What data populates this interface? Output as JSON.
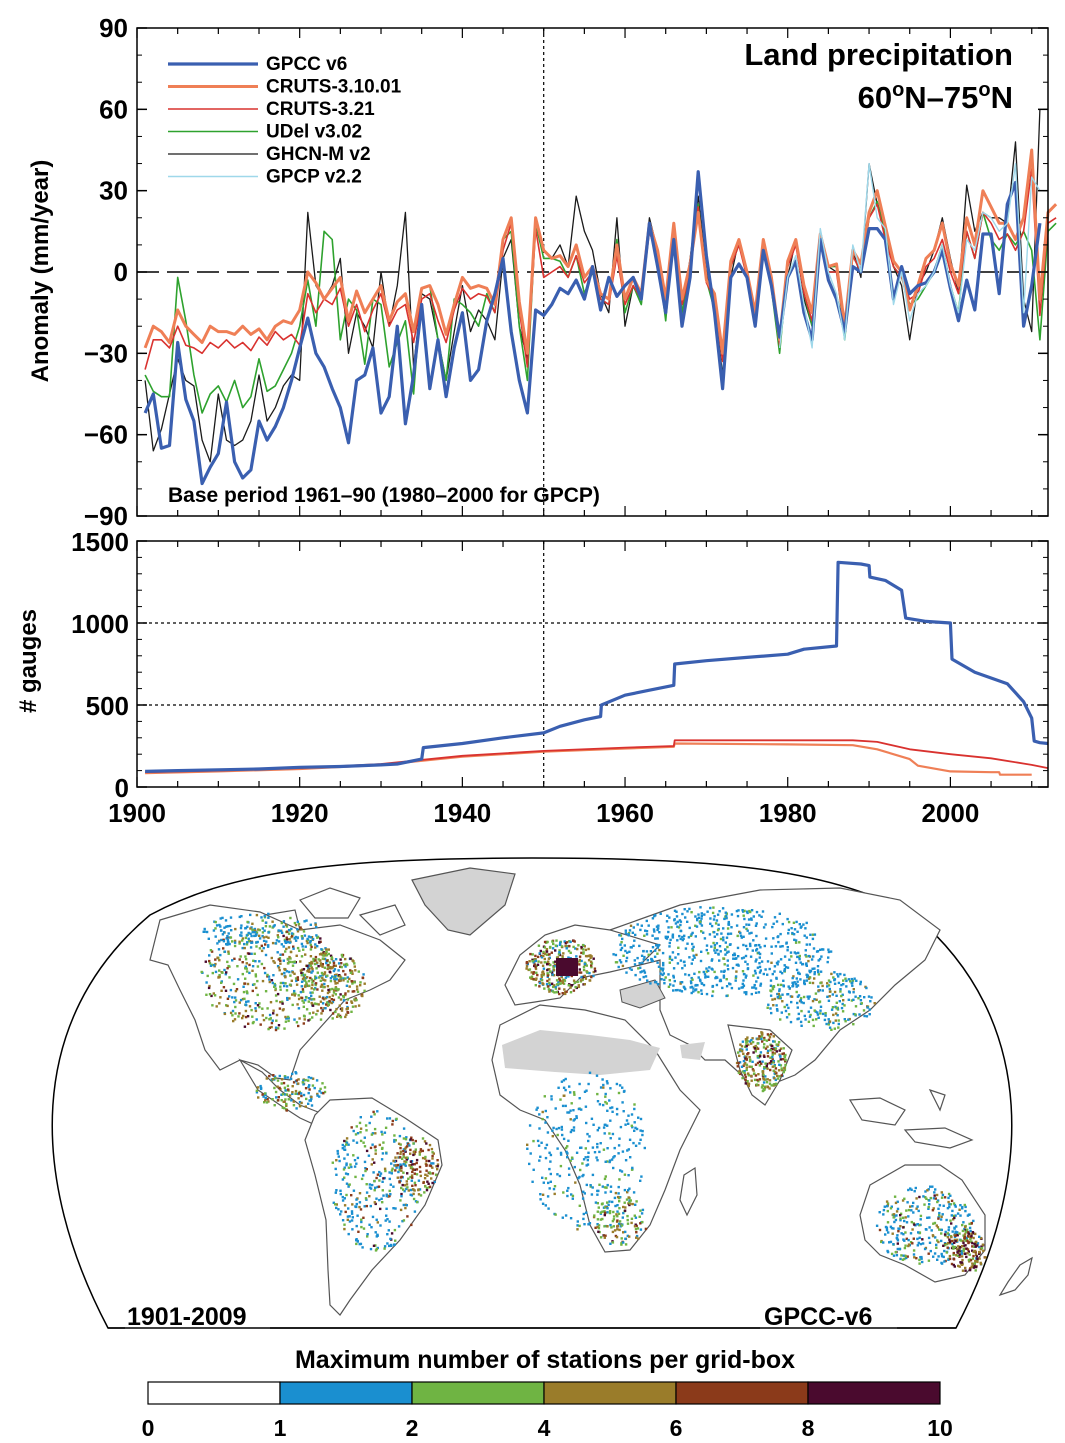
{
  "chart_data": [
    {
      "type": "line",
      "title": "Land precipitation",
      "subtitle_parts": [
        "60",
        "o",
        "N–75",
        "o",
        "N"
      ],
      "ylabel": "Anomaly (mm/year)",
      "xlabel": "",
      "xlim": [
        1900,
        2012
      ],
      "ylim": [
        -90,
        90
      ],
      "yticks": [
        "90",
        "60",
        "30",
        "0",
        "−30",
        "−60",
        "−90"
      ],
      "ytick_values": [
        90,
        60,
        30,
        0,
        -30,
        -60,
        -90
      ],
      "zero_line": "dashed",
      "vline_x": 1950,
      "legend_position": "top-left",
      "annotation": "Base period 1961–90 (1980–2000 for GPCP)",
      "start_year": 1901,
      "series": [
        {
          "name": "GPCC v6",
          "color": "#3a5fb0",
          "width": 3.2,
          "values": [
            -52,
            -45,
            -65,
            -64,
            -26,
            -47,
            -55,
            -78,
            -72,
            -67,
            -48,
            -70,
            -76,
            -73,
            -55,
            -62,
            -57,
            -50,
            -40,
            -28,
            -17,
            -30,
            -35,
            -43,
            -50,
            -63,
            -40,
            -38,
            -28,
            -52,
            -46,
            -20,
            -56,
            -38,
            -12,
            -43,
            -25,
            -46,
            -28,
            -15,
            -40,
            -36,
            -18,
            -8,
            5,
            -22,
            -40,
            -52,
            -14,
            -16,
            -12,
            -6,
            -8,
            -3,
            -10,
            2,
            -14,
            -2,
            -9,
            -5,
            -2,
            -10,
            18,
            2,
            -15,
            12,
            -20,
            -2,
            37,
            6,
            -15,
            -43,
            -2,
            3,
            -2,
            -20,
            8,
            -5,
            -24,
            -2,
            4,
            -15,
            -25,
            12,
            -3,
            -10,
            -22,
            2,
            0,
            16,
            16,
            12,
            -10,
            2,
            -8,
            -5,
            -4,
            0,
            8,
            -6,
            -18,
            -3,
            -14,
            14,
            14,
            -8,
            25,
            33,
            -20,
            -5,
            18
          ]
        },
        {
          "name": "CRUTS-3.10.01",
          "color": "#ef7f56",
          "width": 3.0,
          "values": [
            -28,
            -20,
            -22,
            -26,
            -14,
            -20,
            -23,
            -26,
            -20,
            -22,
            -22,
            -23,
            -20,
            -23,
            -21,
            -25,
            -20,
            -18,
            -19,
            -14,
            0,
            -4,
            -10,
            -6,
            -2,
            -18,
            -7,
            -15,
            -10,
            -5,
            -18,
            -11,
            -8,
            -22,
            -6,
            -5,
            -12,
            -23,
            -12,
            -2,
            -6,
            -5,
            -6,
            -12,
            12,
            20,
            -11,
            -30,
            20,
            8,
            5,
            6,
            2,
            10,
            -2,
            2,
            -8,
            -10,
            10,
            -10,
            -2,
            -8,
            18,
            8,
            -10,
            18,
            -10,
            3,
            22,
            -3,
            -8,
            -30,
            4,
            12,
            0,
            -15,
            12,
            -2,
            -25,
            4,
            12,
            -5,
            -15,
            14,
            2,
            3,
            -20,
            8,
            3,
            22,
            30,
            17,
            4,
            0,
            -14,
            -5,
            5,
            8,
            18,
            3,
            -5,
            20,
            10,
            30,
            24,
            18,
            18,
            12,
            20,
            45,
            -10,
            22,
            25
          ]
        },
        {
          "name": "CRUTS-3.21",
          "color": "#d9322f",
          "width": 1.6,
          "values": [
            -36,
            -25,
            -25,
            -28,
            -20,
            -27,
            -28,
            -30,
            -26,
            -28,
            -25,
            -28,
            -26,
            -29,
            -24,
            -27,
            -22,
            -25,
            -23,
            -27,
            -8,
            -15,
            -10,
            -12,
            -6,
            -20,
            -12,
            -22,
            -14,
            -8,
            -20,
            -14,
            -12,
            -26,
            -10,
            -8,
            -18,
            -26,
            -14,
            -6,
            -10,
            -8,
            -9,
            -15,
            8,
            18,
            -14,
            -35,
            16,
            -2,
            0,
            2,
            -2,
            6,
            -4,
            0,
            -10,
            -12,
            6,
            -12,
            -5,
            -10,
            15,
            5,
            -12,
            15,
            -12,
            0,
            24,
            -4,
            -10,
            -33,
            2,
            10,
            -2,
            -17,
            10,
            -4,
            -27,
            2,
            10,
            -8,
            -18,
            11,
            0,
            0,
            -22,
            6,
            0,
            20,
            25,
            12,
            2,
            -2,
            -10,
            -8,
            2,
            5,
            12,
            0,
            -8,
            15,
            5,
            22,
            18,
            12,
            14,
            8,
            15,
            38,
            -16,
            18,
            20
          ]
        },
        {
          "name": "UDel v3.02",
          "color": "#2ea22e",
          "width": 1.6,
          "values": [
            -38,
            -44,
            -46,
            -46,
            -2,
            -18,
            -38,
            -52,
            -45,
            -42,
            -48,
            -40,
            -50,
            -46,
            -32,
            -44,
            -42,
            -36,
            -30,
            -20,
            -3,
            -20,
            15,
            12,
            -25,
            -10,
            -14,
            -34,
            -10,
            -12,
            -35,
            -26,
            -18,
            -45,
            -6,
            -5,
            -25,
            -40,
            -10,
            -12,
            -15,
            -20,
            -8,
            -15,
            12,
            15,
            -20,
            -40,
            18,
            5,
            5,
            4,
            -2,
            6,
            -8,
            0,
            -10,
            -12,
            12,
            -15,
            -5,
            -12,
            18,
            6,
            -18,
            16,
            -15,
            0,
            25,
            -3,
            -14,
            -40,
            2,
            10,
            0,
            -18,
            10,
            -6,
            -30,
            2,
            12,
            -8,
            -20,
            14,
            2,
            2,
            -25,
            6,
            0,
            20,
            26,
            14,
            2,
            -2,
            -12,
            -10,
            -5,
            0,
            10,
            -5,
            -15,
            15,
            5,
            22,
            12,
            8,
            14,
            10,
            15,
            8,
            -25,
            15,
            18
          ]
        },
        {
          "name": "GHCN-M v2",
          "color": "#1a1a1a",
          "width": 1.3,
          "values": [
            -40,
            -66,
            -58,
            -45,
            -32,
            -40,
            -42,
            -62,
            -70,
            -45,
            -62,
            -64,
            -62,
            -55,
            -38,
            -55,
            -50,
            -42,
            -38,
            -40,
            22,
            -5,
            -10,
            -5,
            5,
            -30,
            -15,
            -20,
            -28,
            0,
            -20,
            -5,
            22,
            -35,
            -8,
            -10,
            -25,
            -40,
            -22,
            -5,
            -22,
            -14,
            -18,
            -25,
            5,
            12,
            -20,
            -32,
            18,
            8,
            5,
            10,
            2,
            28,
            15,
            8,
            -8,
            -15,
            20,
            -20,
            -5,
            -12,
            20,
            8,
            -12,
            15,
            -15,
            5,
            28,
            0,
            -12,
            -38,
            -2,
            12,
            0,
            -18,
            12,
            -5,
            -22,
            -2,
            12,
            -10,
            -20,
            15,
            2,
            0,
            -18,
            8,
            -2,
            40,
            25,
            18,
            2,
            -5,
            -25,
            -5,
            0,
            8,
            20,
            5,
            -8,
            32,
            15,
            22,
            20,
            20,
            18,
            48,
            -10,
            -22,
            60
          ]
        },
        {
          "name": "GPCP v2.2",
          "color": "#9fd8ea",
          "width": 1.4,
          "values": [
            null,
            null,
            null,
            null,
            null,
            null,
            null,
            null,
            null,
            null,
            null,
            null,
            null,
            null,
            null,
            null,
            null,
            null,
            null,
            null,
            null,
            null,
            null,
            null,
            null,
            null,
            null,
            null,
            null,
            null,
            null,
            null,
            null,
            null,
            null,
            null,
            null,
            null,
            null,
            null,
            null,
            null,
            null,
            null,
            null,
            null,
            null,
            null,
            null,
            null,
            null,
            null,
            null,
            null,
            null,
            null,
            null,
            null,
            null,
            null,
            null,
            null,
            null,
            null,
            null,
            null,
            null,
            null,
            null,
            null,
            null,
            null,
            null,
            null,
            null,
            null,
            null,
            null,
            -28,
            -2,
            6,
            -12,
            -28,
            16,
            0,
            -8,
            -25,
            10,
            0,
            40,
            20,
            16,
            -12,
            0,
            -18,
            -8,
            -5,
            0,
            10,
            -5,
            -15,
            12,
            8,
            22,
            20,
            15,
            18,
            40,
            -15,
            35,
            30
          ]
        }
      ]
    },
    {
      "type": "line",
      "title": "",
      "ylabel": "# gauges",
      "xlabel": "",
      "xlim": [
        1900,
        2012
      ],
      "ylim": [
        0,
        1500
      ],
      "yticks": [
        "1500",
        "1000",
        "500",
        "0"
      ],
      "ytick_values": [
        1500,
        1000,
        500,
        0
      ],
      "xticks": [
        "1900",
        "1920",
        "1940",
        "1960",
        "1980",
        "2000"
      ],
      "xtick_values": [
        1900,
        1920,
        1940,
        1960,
        1980,
        2000
      ],
      "hlines": [
        1000,
        500
      ],
      "vline_x": 1950,
      "series": [
        {
          "name": "GPCC v6",
          "color": "#3a5fb0",
          "width": 3.2,
          "points": [
            [
              1901,
              95
            ],
            [
              1905,
              100
            ],
            [
              1910,
              105
            ],
            [
              1915,
              110
            ],
            [
              1920,
              120
            ],
            [
              1925,
              125
            ],
            [
              1930,
              135
            ],
            [
              1932,
              140
            ],
            [
              1935,
              170
            ],
            [
              1935.2,
              240
            ],
            [
              1940,
              265
            ],
            [
              1945,
              300
            ],
            [
              1950,
              330
            ],
            [
              1952,
              370
            ],
            [
              1955,
              410
            ],
            [
              1957,
              430
            ],
            [
              1957.1,
              500
            ],
            [
              1960,
              560
            ],
            [
              1963,
              590
            ],
            [
              1966,
              620
            ],
            [
              1966.1,
              750
            ],
            [
              1970,
              770
            ],
            [
              1975,
              790
            ],
            [
              1980,
              810
            ],
            [
              1982,
              840
            ],
            [
              1986,
              860
            ],
            [
              1986.2,
              1370
            ],
            [
              1989,
              1360
            ],
            [
              1990,
              1350
            ],
            [
              1990.1,
              1280
            ],
            [
              1992,
              1260
            ],
            [
              1994,
              1200
            ],
            [
              1994.5,
              1030
            ],
            [
              1997,
              1010
            ],
            [
              2000,
              1000
            ],
            [
              2000.2,
              780
            ],
            [
              2003,
              700
            ],
            [
              2007,
              630
            ],
            [
              2009,
              520
            ],
            [
              2010,
              420
            ],
            [
              2010.3,
              280
            ],
            [
              2011,
              270
            ],
            [
              2012,
              265
            ]
          ]
        },
        {
          "name": "CRUTS-3.10.01",
          "color": "#ef7f56",
          "width": 2.2,
          "points": [
            [
              1901,
              85
            ],
            [
              1910,
              95
            ],
            [
              1920,
              110
            ],
            [
              1930,
              135
            ],
            [
              1940,
              185
            ],
            [
              1950,
              215
            ],
            [
              1960,
              235
            ],
            [
              1966,
              245
            ],
            [
              1966.1,
              265
            ],
            [
              1980,
              260
            ],
            [
              1988,
              255
            ],
            [
              1991,
              230
            ],
            [
              1995,
              170
            ],
            [
              1996,
              130
            ],
            [
              2000,
              95
            ],
            [
              2005,
              90
            ],
            [
              2006,
              90
            ],
            [
              2006.1,
              75
            ],
            [
              2010,
              75
            ]
          ]
        },
        {
          "name": "CRUTS-3.21",
          "color": "#d9322f",
          "width": 1.8,
          "points": [
            [
              1901,
              90
            ],
            [
              1910,
              100
            ],
            [
              1920,
              115
            ],
            [
              1930,
              140
            ],
            [
              1940,
              190
            ],
            [
              1950,
              220
            ],
            [
              1960,
              240
            ],
            [
              1966,
              250
            ],
            [
              1966.1,
              285
            ],
            [
              1980,
              285
            ],
            [
              1988,
              285
            ],
            [
              1991,
              275
            ],
            [
              1995,
              230
            ],
            [
              2000,
              200
            ],
            [
              2005,
              175
            ],
            [
              2010,
              135
            ],
            [
              2012,
              115
            ]
          ]
        }
      ]
    }
  ],
  "map": {
    "left_label": "1901-2009",
    "right_label": "GPCC-v6",
    "land_fill": "#ffffff",
    "missing_fill": "#d3d3d3",
    "coast_color": "#555555"
  },
  "colorbar": {
    "title": "Maximum number of stations per grid-box",
    "labels": [
      "0",
      "1",
      "2",
      "4",
      "6",
      "8",
      "10"
    ],
    "colors": [
      "#ffffff",
      "#1a8fd0",
      "#6fb443",
      "#9a7c2a",
      "#8b3a1a",
      "#4a0a2e"
    ]
  }
}
